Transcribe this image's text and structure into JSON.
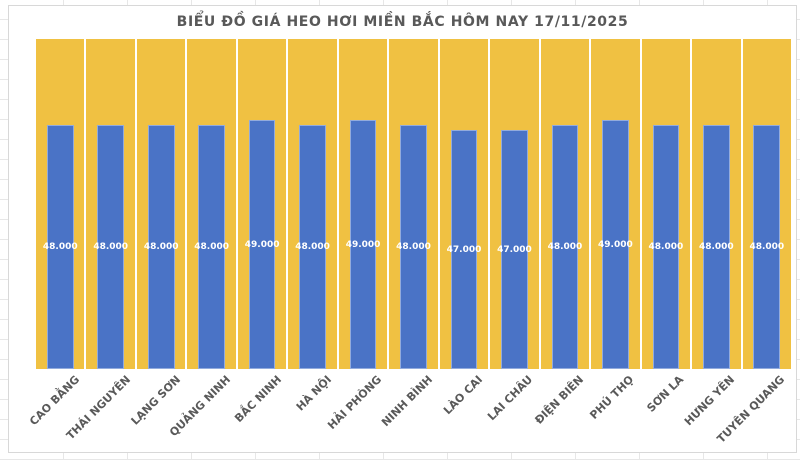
{
  "chart_data": {
    "type": "bar",
    "title": "BIỂU ĐỒ GIÁ HEO HƠI MIỀN BẮC HÔM NAY 17/11/2025",
    "categories": [
      "CAO BẰNG",
      "THÁI NGUYÊN",
      "LẠNG SƠN",
      "QUẢNG NINH",
      "BẮC NINH",
      "HÀ NỘI",
      "HẢI PHÒNG",
      "NINH BÌNH",
      "LÀO CAI",
      "LAI CHÂU",
      "ĐIỆN BIÊN",
      "PHÚ THỌ",
      "SƠN LA",
      "HƯNG YÊN",
      "TUYÊN QUANG"
    ],
    "values": [
      48000,
      48000,
      48000,
      48000,
      49000,
      48000,
      49000,
      48000,
      47000,
      47000,
      48000,
      49000,
      48000,
      48000,
      48000
    ],
    "data_labels": [
      "48.000",
      "48.000",
      "48.000",
      "48.000",
      "49.000",
      "48.000",
      "49.000",
      "48.000",
      "47.000",
      "47.000",
      "48.000",
      "49.000",
      "48.000",
      "48.000",
      "48.000"
    ],
    "xlabel": "",
    "ylabel": "",
    "ylim": [
      0,
      65000
    ],
    "grid": false,
    "legend": "none",
    "bar_color": "#4A73C6",
    "plot_background_color": "#F0C142",
    "data_label_color": "#FFFFFF",
    "axis_label_color": "#595959",
    "title_color": "#595959"
  }
}
